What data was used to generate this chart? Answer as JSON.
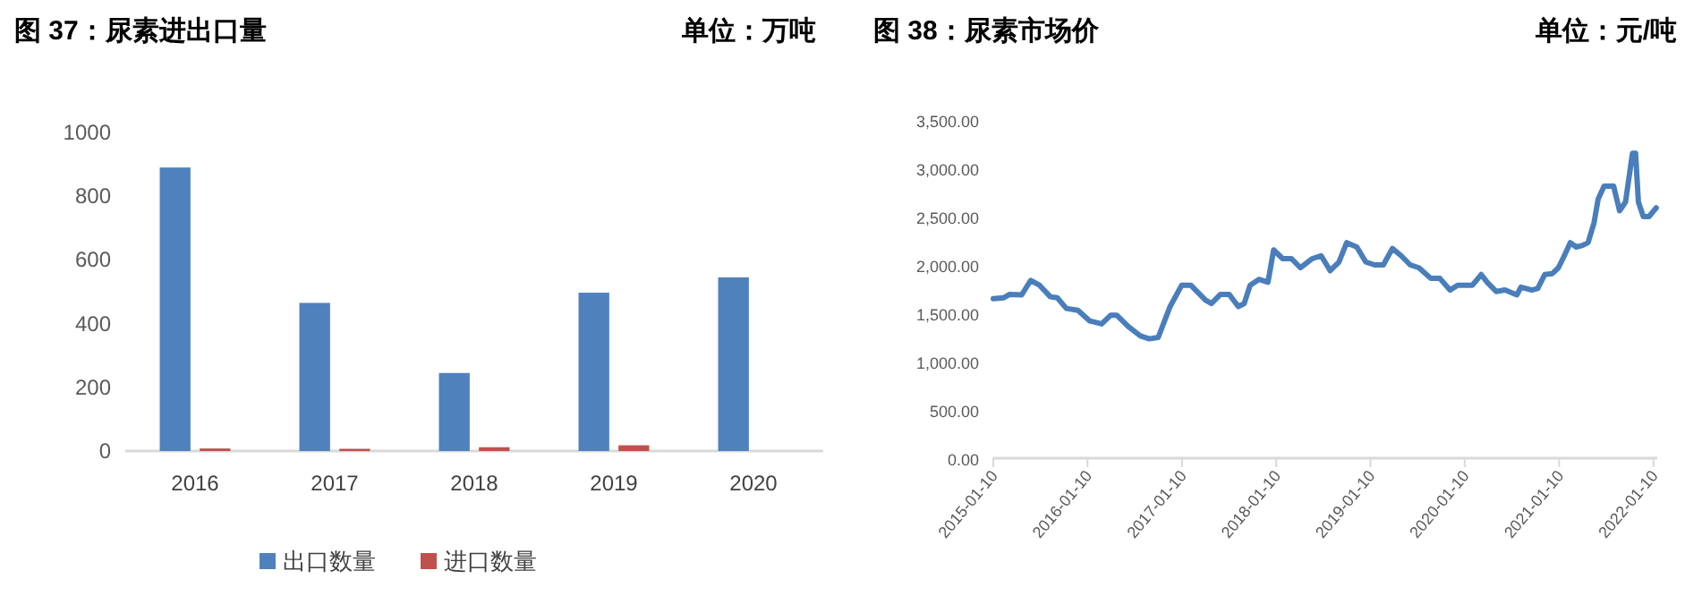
{
  "chart_data": [
    {
      "type": "bar",
      "title": "图 37：尿素进出口量",
      "annotations": [
        "单位：万吨"
      ],
      "categories": [
        "2016",
        "2017",
        "2018",
        "2019",
        "2020"
      ],
      "series": [
        {
          "name": "出口数量",
          "color": "#4f81bd",
          "values": [
            890,
            465,
            245,
            497,
            545
          ]
        },
        {
          "name": "进口数量",
          "color": "#c0504d",
          "values": [
            8,
            7,
            12,
            18,
            null
          ]
        }
      ],
      "ylim": [
        0,
        1000
      ],
      "yticks": [
        0,
        200,
        400,
        600,
        800,
        1000
      ],
      "legend": "bottom",
      "grid": false
    },
    {
      "type": "line",
      "title": "图 38：尿素市场价",
      "annotations": [
        "单位：元/吨"
      ],
      "x": [
        "2015-01-10",
        "2015-02-20",
        "2015-03-15",
        "2015-04-30",
        "2015-06-04",
        "2015-07-08",
        "2015-08-19",
        "2015-09-15",
        "2015-10-20",
        "2015-12-04",
        "2016-01-19",
        "2016-03-05",
        "2016-04-09",
        "2016-05-02",
        "2016-06-17",
        "2016-08-02",
        "2016-09-05",
        "2016-10-10",
        "2016-11-25",
        "2017-01-09",
        "2017-02-13",
        "2017-04-11",
        "2017-05-04",
        "2017-06-08",
        "2017-07-12",
        "2017-08-16",
        "2017-09-08",
        "2017-10-01",
        "2017-11-04",
        "2017-12-09",
        "2017-12-31",
        "2018-02-04",
        "2018-03-10",
        "2018-04-14",
        "2018-05-30",
        "2018-07-03",
        "2018-08-07",
        "2018-09-10",
        "2018-10-10",
        "2018-11-18",
        "2018-12-23",
        "2019-01-26",
        "2019-03-01",
        "2019-04-05",
        "2019-05-09",
        "2019-06-13",
        "2019-07-17",
        "2019-09-01",
        "2019-10-06",
        "2019-11-14",
        "2019-12-14",
        "2020-02-09",
        "2020-03-14",
        "2020-04-06",
        "2020-05-11",
        "2020-06-14",
        "2020-07-30",
        "2020-08-15",
        "2020-09-26",
        "2020-10-19",
        "2020-11-15",
        "2020-12-15",
        "2021-01-07",
        "2021-01-30",
        "2021-02-22",
        "2021-03-17",
        "2021-04-09",
        "2021-05-02",
        "2021-05-25",
        "2021-06-10",
        "2021-07-03",
        "2021-08-09",
        "2021-09-01",
        "2021-09-24",
        "2021-10-21",
        "2021-11-02",
        "2021-11-13",
        "2021-12-02",
        "2021-12-24",
        "2022-01-21"
      ],
      "series": [
        {
          "color": "#4a7ebb",
          "values": [
            1650,
            1660,
            1695,
            1690,
            1840,
            1790,
            1670,
            1660,
            1550,
            1530,
            1420,
            1390,
            1480,
            1480,
            1360,
            1265,
            1235,
            1250,
            1570,
            1790,
            1790,
            1635,
            1600,
            1695,
            1695,
            1570,
            1600,
            1790,
            1850,
            1820,
            2155,
            2065,
            2065,
            1970,
            2065,
            2095,
            1940,
            2030,
            2230,
            2185,
            2030,
            2000,
            2000,
            2170,
            2095,
            2000,
            1970,
            1860,
            1860,
            1740,
            1790,
            1790,
            1900,
            1820,
            1725,
            1740,
            1690,
            1770,
            1740,
            1755,
            1900,
            1910,
            1970,
            2095,
            2230,
            2185,
            2200,
            2230,
            2435,
            2680,
            2815,
            2815,
            2560,
            2650,
            3155,
            3155,
            2650,
            2500,
            2500,
            2590
          ]
        }
      ],
      "xlim": [
        "2015-01-10",
        "2022-01-25"
      ],
      "xticks": [
        "2015-01-10",
        "2016-01-10",
        "2017-01-10",
        "2018-01-10",
        "2019-01-10",
        "2020-01-10",
        "2021-01-10",
        "2022-01-10"
      ],
      "ylim": [
        0,
        3500
      ],
      "yticks": [
        {
          "value": 0,
          "label": "0.00"
        },
        {
          "value": 500,
          "label": "500.00"
        },
        {
          "value": 1000,
          "label": "1,000.00"
        },
        {
          "value": 1500,
          "label": "1,500.00"
        },
        {
          "value": 2000,
          "label": "2,000.00"
        },
        {
          "value": 2500,
          "label": "2,500.00"
        },
        {
          "value": 3000,
          "label": "3,000.00"
        },
        {
          "value": 3500,
          "label": "3,500.00"
        }
      ],
      "legend": false,
      "grid": false
    }
  ]
}
